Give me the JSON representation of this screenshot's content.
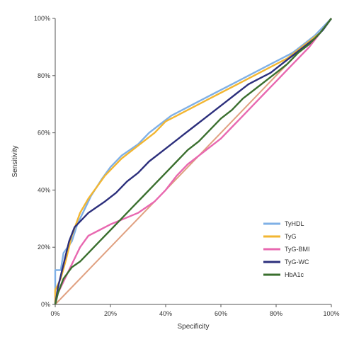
{
  "chart_data": {
    "type": "line",
    "xlabel": "Specificity",
    "ylabel": "Sensitivity",
    "xlim": [
      0,
      100
    ],
    "ylim": [
      0,
      100
    ],
    "x_ticks": [
      "0%",
      "20%",
      "40%",
      "60%",
      "80%",
      "100%"
    ],
    "y_ticks": [
      "0%",
      "20%",
      "40%",
      "60%",
      "80%",
      "100%"
    ],
    "grid": false,
    "legend_position": "bottom-right",
    "reference_line": {
      "color": "#e0a080",
      "points": [
        [
          0,
          0
        ],
        [
          100,
          100
        ]
      ]
    },
    "series": [
      {
        "name": "TyHDL",
        "color": "#7fb0e6",
        "points": [
          [
            0,
            0
          ],
          [
            0,
            12
          ],
          [
            2,
            12
          ],
          [
            3,
            18
          ],
          [
            6,
            22
          ],
          [
            8,
            28
          ],
          [
            10,
            32
          ],
          [
            13,
            38
          ],
          [
            17,
            44
          ],
          [
            20,
            48
          ],
          [
            24,
            52
          ],
          [
            27,
            54
          ],
          [
            30,
            56
          ],
          [
            34,
            60
          ],
          [
            38,
            63
          ],
          [
            42,
            66
          ],
          [
            46,
            68
          ],
          [
            50,
            70
          ],
          [
            54,
            72
          ],
          [
            58,
            74
          ],
          [
            62,
            76
          ],
          [
            66,
            78
          ],
          [
            70,
            80
          ],
          [
            74,
            82
          ],
          [
            78,
            84
          ],
          [
            82,
            86
          ],
          [
            86,
            88
          ],
          [
            90,
            91
          ],
          [
            94,
            94
          ],
          [
            97,
            97
          ],
          [
            100,
            100
          ]
        ]
      },
      {
        "name": "TyG",
        "color": "#f2b632",
        "points": [
          [
            0,
            0
          ],
          [
            0,
            5
          ],
          [
            2,
            9
          ],
          [
            4,
            16
          ],
          [
            6,
            24
          ],
          [
            9,
            32
          ],
          [
            12,
            37
          ],
          [
            15,
            41
          ],
          [
            18,
            45
          ],
          [
            21,
            48
          ],
          [
            24,
            51
          ],
          [
            28,
            54
          ],
          [
            32,
            57
          ],
          [
            36,
            60
          ],
          [
            40,
            64
          ],
          [
            44,
            66
          ],
          [
            48,
            68
          ],
          [
            52,
            70
          ],
          [
            56,
            72
          ],
          [
            60,
            74
          ],
          [
            64,
            76
          ],
          [
            68,
            78
          ],
          [
            72,
            80
          ],
          [
            76,
            82
          ],
          [
            80,
            84
          ],
          [
            84,
            86
          ],
          [
            88,
            89
          ],
          [
            92,
            92
          ],
          [
            96,
            95
          ],
          [
            100,
            100
          ]
        ]
      },
      {
        "name": "TyG-BMI",
        "color": "#e868b0",
        "points": [
          [
            0,
            0
          ],
          [
            1,
            4
          ],
          [
            3,
            8
          ],
          [
            6,
            14
          ],
          [
            9,
            20
          ],
          [
            12,
            24
          ],
          [
            16,
            26
          ],
          [
            20,
            28
          ],
          [
            25,
            30
          ],
          [
            30,
            32
          ],
          [
            36,
            36
          ],
          [
            40,
            40
          ],
          [
            44,
            45
          ],
          [
            48,
            49
          ],
          [
            52,
            52
          ],
          [
            56,
            55
          ],
          [
            60,
            58
          ],
          [
            64,
            62
          ],
          [
            68,
            66
          ],
          [
            72,
            70
          ],
          [
            76,
            74
          ],
          [
            80,
            78
          ],
          [
            84,
            82
          ],
          [
            88,
            86
          ],
          [
            92,
            90
          ],
          [
            96,
            95
          ],
          [
            100,
            100
          ]
        ]
      },
      {
        "name": "TyG-WC",
        "color": "#2c2f7c",
        "points": [
          [
            0,
            0
          ],
          [
            1,
            6
          ],
          [
            3,
            14
          ],
          [
            5,
            22
          ],
          [
            7,
            27
          ],
          [
            10,
            30
          ],
          [
            12,
            32
          ],
          [
            15,
            34
          ],
          [
            18,
            36
          ],
          [
            22,
            39
          ],
          [
            26,
            43
          ],
          [
            30,
            46
          ],
          [
            34,
            50
          ],
          [
            38,
            53
          ],
          [
            42,
            56
          ],
          [
            46,
            59
          ],
          [
            50,
            62
          ],
          [
            54,
            65
          ],
          [
            58,
            68
          ],
          [
            62,
            71
          ],
          [
            66,
            74
          ],
          [
            70,
            77
          ],
          [
            74,
            79
          ],
          [
            78,
            81
          ],
          [
            82,
            84
          ],
          [
            86,
            87
          ],
          [
            90,
            90
          ],
          [
            94,
            93
          ],
          [
            97,
            96
          ],
          [
            100,
            100
          ]
        ]
      },
      {
        "name": "HbA1c",
        "color": "#3a6f2e",
        "points": [
          [
            0,
            0
          ],
          [
            1,
            4
          ],
          [
            3,
            9
          ],
          [
            6,
            13
          ],
          [
            9,
            15
          ],
          [
            12,
            18
          ],
          [
            16,
            22
          ],
          [
            20,
            26
          ],
          [
            24,
            30
          ],
          [
            28,
            34
          ],
          [
            32,
            38
          ],
          [
            36,
            42
          ],
          [
            40,
            46
          ],
          [
            44,
            50
          ],
          [
            48,
            54
          ],
          [
            52,
            57
          ],
          [
            56,
            61
          ],
          [
            60,
            65
          ],
          [
            64,
            68
          ],
          [
            68,
            72
          ],
          [
            72,
            75
          ],
          [
            76,
            78
          ],
          [
            80,
            81
          ],
          [
            84,
            84
          ],
          [
            88,
            88
          ],
          [
            92,
            91
          ],
          [
            96,
            95
          ],
          [
            100,
            100
          ]
        ]
      }
    ]
  }
}
